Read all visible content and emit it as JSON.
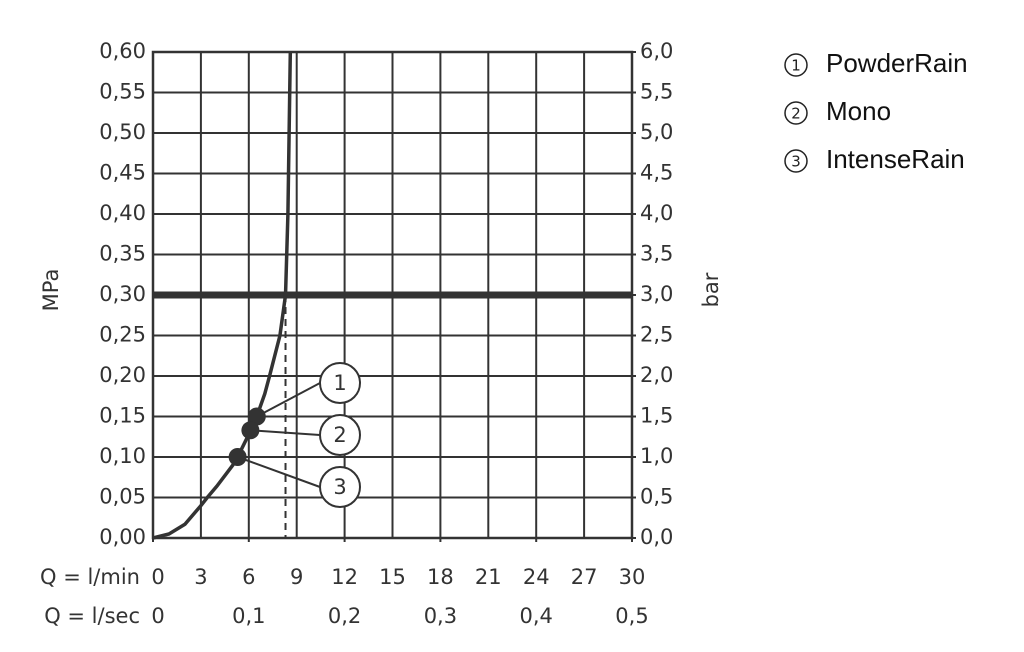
{
  "chart_data": {
    "type": "line",
    "x_label": "Q = l/min",
    "x2_label": "Q = l/sec",
    "y_label": "MPa",
    "y2_label": "bar",
    "xlim": [
      0,
      30
    ],
    "xticks": [
      0,
      3,
      6,
      9,
      12,
      15,
      18,
      21,
      24,
      27,
      30
    ],
    "x2lim": [
      0,
      0.5
    ],
    "x2ticks": [
      0,
      {
        "value": 0.1,
        "label": "0,1"
      },
      {
        "value": 0.2,
        "label": "0,2"
      },
      {
        "value": 0.3,
        "label": "0,3"
      },
      {
        "value": 0.4,
        "label": "0,4"
      },
      {
        "value": 0.5,
        "label": "0,5"
      }
    ],
    "ylim": [
      0,
      0.6
    ],
    "yticks": [
      {
        "value": 0,
        "label": "0,00"
      },
      {
        "value": 0.05,
        "label": "0,05"
      },
      {
        "value": 0.1,
        "label": "0,10"
      },
      {
        "value": 0.15,
        "label": "0,15"
      },
      {
        "value": 0.2,
        "label": "0,20"
      },
      {
        "value": 0.25,
        "label": "0,25"
      },
      {
        "value": 0.3,
        "label": "0,30"
      },
      {
        "value": 0.35,
        "label": "0,35"
      },
      {
        "value": 0.4,
        "label": "0,40"
      },
      {
        "value": 0.45,
        "label": "0,45"
      },
      {
        "value": 0.5,
        "label": "0,50"
      },
      {
        "value": 0.55,
        "label": "0,55"
      },
      {
        "value": 0.6,
        "label": "0,60"
      }
    ],
    "y2lim": [
      0,
      6
    ],
    "y2ticks": [
      {
        "value": 0,
        "label": "0,0"
      },
      {
        "value": 0.5,
        "label": "0,5"
      },
      {
        "value": 1,
        "label": "1,0"
      },
      {
        "value": 1.5,
        "label": "1,5"
      },
      {
        "value": 2,
        "label": "2,0"
      },
      {
        "value": 2.5,
        "label": "2,5"
      },
      {
        "value": 3,
        "label": "3,0"
      },
      {
        "value": 3.5,
        "label": "3,5"
      },
      {
        "value": 4,
        "label": "4,0"
      },
      {
        "value": 4.5,
        "label": "4,5"
      },
      {
        "value": 5,
        "label": "5,0"
      },
      {
        "value": 5.5,
        "label": "5,5"
      },
      {
        "value": 6,
        "label": "6,0"
      }
    ],
    "grid": true,
    "series": [
      {
        "color": "#333333",
        "x": [
          0,
          1,
          2,
          3,
          3.4,
          4,
          5,
          5.3,
          6,
          6.5,
          7,
          7.3,
          7.95,
          8.3,
          8.45,
          8.6
        ],
        "values": [
          0,
          0.005,
          0.017,
          0.04,
          0.05,
          0.064,
          0.09,
          0.1,
          0.128,
          0.15,
          0.178,
          0.2,
          0.25,
          0.3,
          0.4,
          0.6
        ]
      }
    ],
    "max_pressure": 0.3,
    "flow_at_max_pressure": 8.3,
    "markers": [
      {
        "label": "1",
        "name": "PowderRain",
        "x": 6.5,
        "y": 0.15
      },
      {
        "label": "2",
        "name": "Mono",
        "x": 6.1,
        "y": 0.133
      },
      {
        "label": "3",
        "name": "IntenseRain",
        "x": 5.3,
        "y": 0.1
      }
    ]
  }
}
